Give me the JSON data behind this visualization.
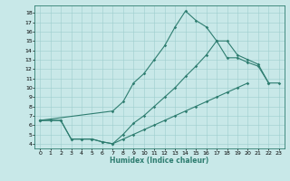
{
  "xlabel": "Humidex (Indice chaleur)",
  "ylabel": "",
  "xlim": [
    -0.5,
    23.5
  ],
  "ylim": [
    3.5,
    18.8
  ],
  "xticks": [
    0,
    1,
    2,
    3,
    4,
    5,
    6,
    7,
    8,
    9,
    10,
    11,
    12,
    13,
    14,
    15,
    16,
    17,
    18,
    19,
    20,
    21,
    22,
    23
  ],
  "yticks": [
    4,
    5,
    6,
    7,
    8,
    9,
    10,
    11,
    12,
    13,
    14,
    15,
    16,
    17,
    18
  ],
  "line_color": "#2e7d70",
  "bg_color": "#c8e8e8",
  "upper_x": [
    0,
    7,
    8,
    9,
    10,
    11,
    12,
    13,
    14,
    15,
    16,
    17,
    18,
    19,
    20,
    21,
    22,
    23
  ],
  "upper_y": [
    6.5,
    7.5,
    8.5,
    10.5,
    11.5,
    13.0,
    14.5,
    16.5,
    18.2,
    17.2,
    16.5,
    15.0,
    13.2,
    13.2,
    12.7,
    12.3,
    10.5,
    10.5
  ],
  "mid_x": [
    0,
    2,
    3,
    4,
    5,
    6,
    7,
    8,
    9,
    10,
    11,
    12,
    13,
    14,
    15,
    16,
    17,
    18,
    19,
    20,
    21,
    22
  ],
  "mid_y": [
    6.5,
    6.5,
    4.5,
    4.5,
    4.5,
    4.2,
    4.0,
    5.0,
    6.2,
    7.0,
    8.0,
    9.0,
    10.0,
    11.2,
    12.3,
    13.5,
    15.0,
    15.0,
    13.5,
    13.0,
    12.5,
    10.5
  ],
  "lower_x": [
    0,
    1,
    2,
    3,
    4,
    5,
    6,
    7,
    8,
    9,
    10,
    11,
    12,
    13,
    14,
    15,
    16,
    17,
    18,
    19,
    20
  ],
  "lower_y": [
    6.5,
    6.5,
    6.5,
    4.5,
    4.5,
    4.5,
    4.2,
    4.0,
    4.5,
    5.0,
    5.5,
    6.0,
    6.5,
    7.0,
    7.5,
    8.0,
    8.5,
    9.0,
    9.5,
    10.0,
    10.5
  ]
}
